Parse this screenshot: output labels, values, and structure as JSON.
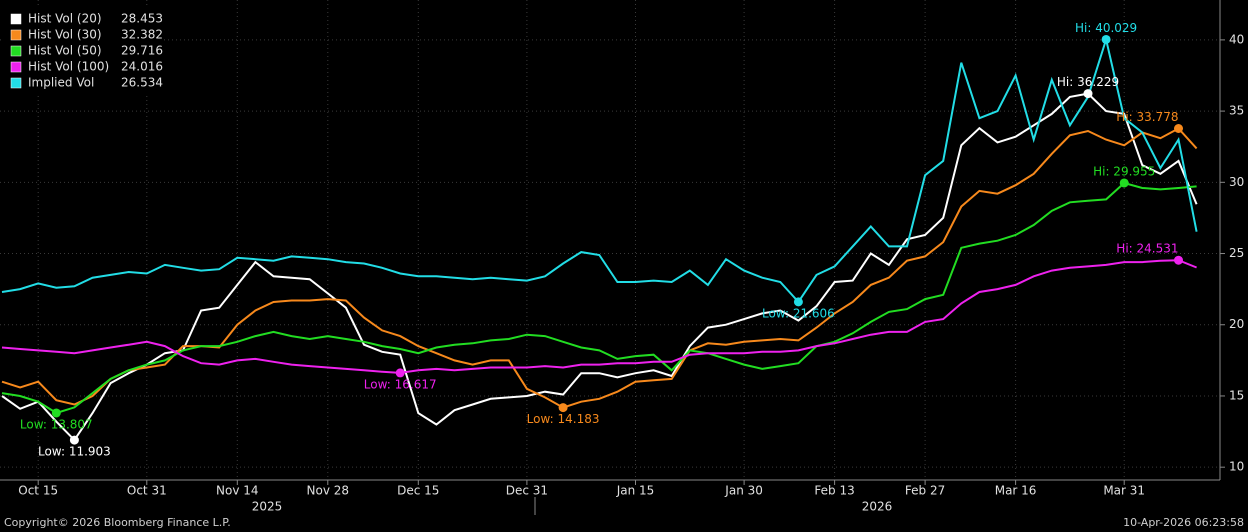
{
  "chart_data": {
    "type": "line",
    "categories": [
      null,
      null,
      "Oct 15",
      null,
      null,
      null,
      null,
      null,
      "Oct 31",
      null,
      null,
      null,
      null,
      "Nov 14",
      null,
      null,
      null,
      null,
      "Nov 28",
      null,
      null,
      null,
      null,
      "Dec 15",
      null,
      null,
      null,
      null,
      null,
      "Dec 31",
      null,
      null,
      null,
      null,
      null,
      "Jan 15",
      null,
      null,
      null,
      null,
      null,
      "Jan 30",
      null,
      null,
      null,
      null,
      "Feb 13",
      null,
      null,
      null,
      null,
      "Feb 27",
      null,
      null,
      null,
      null,
      "Mar 16",
      null,
      null,
      null,
      null,
      null,
      "Mar 31",
      null,
      null,
      null,
      null
    ],
    "x_groups": [
      "2025",
      "2026"
    ],
    "series": [
      {
        "name": "Hist Vol (20)",
        "color": "#ffffff",
        "values": [
          15.0,
          14.1,
          14.6,
          13.2,
          11.903,
          13.8,
          15.9,
          16.6,
          17.2,
          18.0,
          18.2,
          21.0,
          21.2,
          22.8,
          24.4,
          23.4,
          23.3,
          23.2,
          22.2,
          21.2,
          18.6,
          18.1,
          17.9,
          13.8,
          13.0,
          14.0,
          14.4,
          14.8,
          14.9,
          15.0,
          15.3,
          15.1,
          16.6,
          16.6,
          16.3,
          16.6,
          16.8,
          16.4,
          18.5,
          19.8,
          20.0,
          20.4,
          20.8,
          21.0,
          20.3,
          21.3,
          23.0,
          23.1,
          25.0,
          24.2,
          26.0,
          26.3,
          27.5,
          32.6,
          33.8,
          32.8,
          33.2,
          34.0,
          34.8,
          36.0,
          36.229,
          35.0,
          34.8,
          31.2,
          30.6,
          31.5,
          28.453
        ]
      },
      {
        "name": "Hist Vol (30)",
        "color": "#f7891c",
        "values": [
          16.0,
          15.6,
          16.0,
          14.7,
          14.4,
          15.0,
          16.2,
          16.8,
          17.0,
          17.2,
          18.5,
          18.5,
          18.4,
          20.0,
          21.0,
          21.6,
          21.7,
          21.7,
          21.8,
          21.7,
          20.5,
          19.6,
          19.2,
          18.5,
          18.0,
          17.5,
          17.2,
          17.5,
          17.5,
          15.5,
          14.9,
          14.183,
          14.6,
          14.8,
          15.3,
          16.0,
          16.1,
          16.2,
          18.2,
          18.7,
          18.6,
          18.8,
          18.9,
          19.0,
          18.9,
          19.8,
          20.8,
          21.6,
          22.8,
          23.3,
          24.5,
          24.8,
          25.8,
          28.3,
          29.4,
          29.2,
          29.8,
          30.6,
          32.0,
          33.3,
          33.6,
          33.0,
          32.6,
          33.5,
          33.1,
          33.778,
          32.382
        ]
      },
      {
        "name": "Hist Vol (50)",
        "color": "#22dd22",
        "values": [
          15.2,
          15.0,
          14.6,
          13.807,
          14.2,
          15.2,
          16.2,
          16.8,
          17.2,
          17.5,
          18.2,
          18.5,
          18.5,
          18.8,
          19.2,
          19.5,
          19.2,
          19.0,
          19.2,
          19.0,
          18.8,
          18.5,
          18.3,
          18.0,
          18.4,
          18.6,
          18.7,
          18.9,
          19.0,
          19.3,
          19.2,
          18.8,
          18.4,
          18.2,
          17.6,
          17.8,
          17.9,
          16.8,
          18.2,
          18.0,
          17.6,
          17.2,
          16.9,
          17.1,
          17.3,
          18.5,
          18.8,
          19.4,
          20.2,
          20.9,
          21.1,
          21.8,
          22.1,
          25.4,
          25.7,
          25.9,
          26.3,
          27.0,
          28.0,
          28.6,
          28.7,
          28.8,
          29.955,
          29.6,
          29.5,
          29.6,
          29.716
        ]
      },
      {
        "name": "Hist Vol (100)",
        "color": "#ee22ee",
        "values": [
          18.4,
          18.3,
          18.2,
          18.1,
          18.0,
          18.2,
          18.4,
          18.6,
          18.8,
          18.5,
          17.8,
          17.3,
          17.2,
          17.5,
          17.6,
          17.4,
          17.2,
          17.1,
          17.0,
          16.9,
          16.8,
          16.7,
          16.617,
          16.8,
          16.9,
          16.8,
          16.9,
          17.0,
          17.0,
          17.0,
          17.1,
          17.0,
          17.2,
          17.2,
          17.3,
          17.3,
          17.4,
          17.4,
          17.9,
          18.0,
          18.0,
          18.0,
          18.1,
          18.1,
          18.2,
          18.5,
          18.7,
          19.0,
          19.3,
          19.5,
          19.5,
          20.2,
          20.4,
          21.5,
          22.3,
          22.5,
          22.8,
          23.4,
          23.8,
          24.0,
          24.1,
          24.2,
          24.4,
          24.4,
          24.5,
          24.531,
          24.016
        ]
      },
      {
        "name": "Implied Vol",
        "color": "#22dde6",
        "values": [
          22.3,
          22.5,
          22.9,
          22.6,
          22.7,
          23.3,
          23.5,
          23.7,
          23.6,
          24.2,
          24.0,
          23.8,
          23.9,
          24.7,
          24.6,
          24.5,
          24.8,
          24.7,
          24.6,
          24.4,
          24.3,
          24.0,
          23.6,
          23.4,
          23.4,
          23.3,
          23.2,
          23.3,
          23.2,
          23.1,
          23.4,
          24.3,
          25.1,
          24.9,
          23.0,
          23.0,
          23.1,
          23.0,
          23.8,
          22.8,
          24.6,
          23.8,
          23.3,
          23.0,
          21.606,
          23.5,
          24.1,
          25.5,
          26.9,
          25.5,
          25.5,
          30.5,
          31.5,
          38.4,
          34.5,
          35.0,
          37.5,
          33.0,
          37.2,
          34.0,
          36.0,
          40.029,
          34.5,
          33.5,
          31.0,
          33.0,
          26.534
        ]
      }
    ],
    "annotations": [
      {
        "series": 0,
        "value": 11.903,
        "label": "Low: 11.903"
      },
      {
        "series": 2,
        "value": 13.807,
        "label": "Low: 13.807"
      },
      {
        "series": 3,
        "value": 16.617,
        "label": "Low: 16.617"
      },
      {
        "series": 1,
        "value": 14.183,
        "label": "Low: 14.183"
      },
      {
        "series": 4,
        "value": 21.606,
        "label": "Low: 21.606"
      },
      {
        "series": 4,
        "value": 40.029,
        "label": "Hi: 40.029"
      },
      {
        "series": 0,
        "value": 36.229,
        "label": "Hi: 36.229"
      },
      {
        "series": 1,
        "value": 33.778,
        "label": "Hi: 33.778"
      },
      {
        "series": 2,
        "value": 29.955,
        "label": "Hi: 29.955"
      },
      {
        "series": 3,
        "value": 24.531,
        "label": "Hi: 24.531"
      }
    ],
    "ylim": [
      9.1,
      42.8
    ],
    "yticks": [
      10,
      15,
      20,
      25,
      30,
      35,
      40
    ],
    "grid": true,
    "legend": "top-left",
    "footer_left": "Copyright© 2026 Bloomberg Finance L.P.",
    "footer_right": "10-Apr-2026 06:23:58"
  }
}
